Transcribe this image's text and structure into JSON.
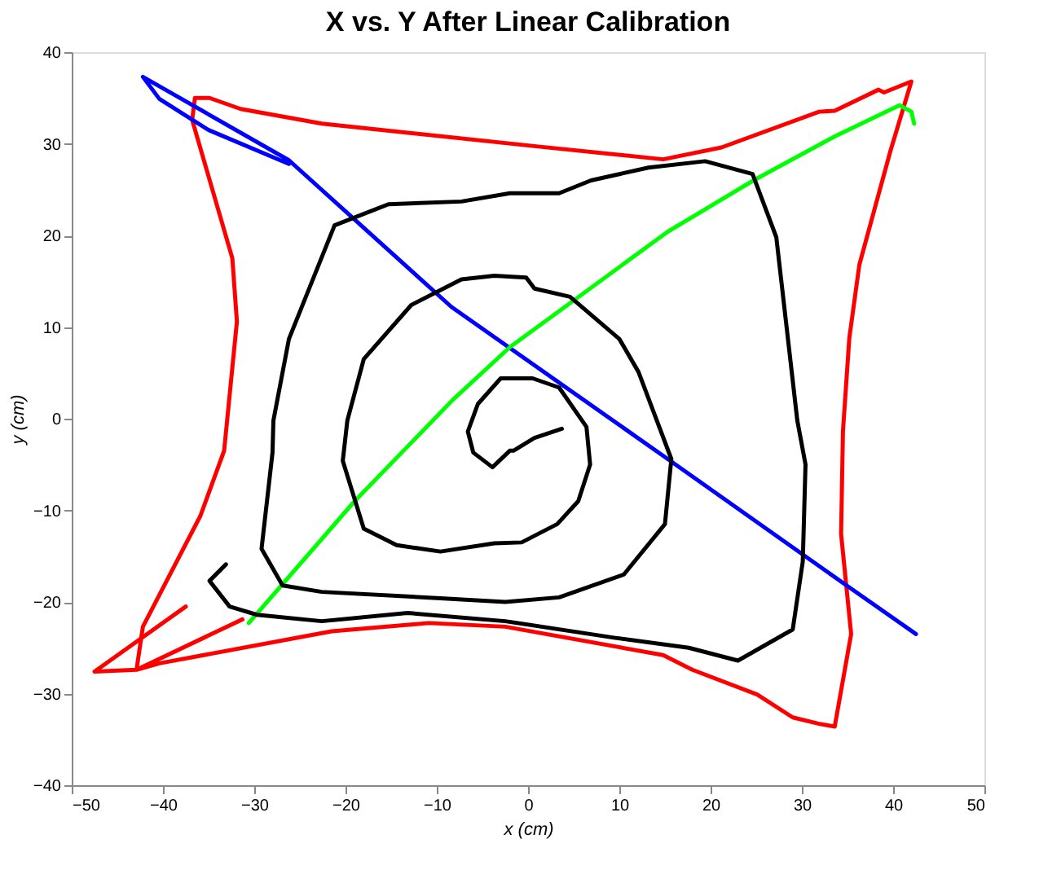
{
  "chart_data": {
    "type": "line",
    "title": "X vs. Y After Linear Calibration",
    "xlabel": "x (cm)",
    "ylabel": "y (cm)",
    "xlim": [
      -50,
      50
    ],
    "ylim": [
      -40,
      40
    ],
    "xticks": [
      -50,
      -40,
      -30,
      -20,
      -10,
      0,
      10,
      20,
      30,
      40,
      50
    ],
    "yticks": [
      -40,
      -30,
      -20,
      -10,
      0,
      10,
      20,
      30,
      40
    ],
    "grid": false,
    "marker": "none",
    "line_style": "solid",
    "series": [
      {
        "color": "#ff0000",
        "x": [
          -37.5,
          -47.5,
          -42.9,
          -42.2,
          -35.9,
          -33.3,
          -31.9,
          -32.4,
          -36.8,
          -36.5,
          -34.9,
          -31.5,
          -22.6,
          1.1,
          14.8,
          21.2,
          31.9,
          33.6,
          38.4,
          39.0,
          42.0,
          39.7,
          36.3,
          35.2,
          34.5,
          34.3,
          35.4,
          33.6,
          31.9,
          29.0,
          25.1,
          18.0,
          14.8,
          -2.5,
          -10.9,
          -21.5,
          -40.4,
          -42.9,
          -31.3
        ],
        "values": [
          -20.5,
          -27.6,
          -27.4,
          -22.7,
          -10.6,
          -3.5,
          10.6,
          17.5,
          32.6,
          35.0,
          35.0,
          33.8,
          32.2,
          29.7,
          28.3,
          29.6,
          33.5,
          33.6,
          35.9,
          35.6,
          36.8,
          29.2,
          16.8,
          8.8,
          -1.4,
          -12.6,
          -23.5,
          -33.6,
          -33.3,
          -32.6,
          -30.1,
          -27.4,
          -25.8,
          -22.7,
          -22.3,
          -23.2,
          -26.7,
          -27.4,
          -21.9
        ]
      },
      {
        "color": "#0000ff",
        "x": [
          -26.2,
          -35.0,
          -40.4,
          -42.2,
          -26.2,
          -8.4,
          15.3,
          34.9,
          42.5
        ],
        "values": [
          27.8,
          31.5,
          34.9,
          37.3,
          28.2,
          12.2,
          -4.4,
          -18.2,
          -23.5
        ]
      },
      {
        "color": "#00ff00",
        "x": [
          -30.6,
          -19.0,
          -8.2,
          -2.0,
          15.3,
          24.7,
          33.6,
          40.7,
          42.0,
          42.3
        ],
        "values": [
          -22.3,
          -9.0,
          2.1,
          7.8,
          20.4,
          26.0,
          30.8,
          34.2,
          33.5,
          32.2
        ]
      },
      {
        "color": "#000000",
        "x": [
          3.7,
          0.7,
          -1.6,
          -2.0,
          -3.9,
          -6.0,
          -6.6,
          -5.5,
          -3.0,
          0.5,
          3.4,
          6.4,
          6.8,
          5.5,
          3.2,
          -0.7,
          -3.7,
          -9.6,
          -14.4,
          -18.0,
          -20.3,
          -19.8,
          -18.0,
          -12.8,
          -7.3,
          -3.7,
          -0.2,
          0.7,
          4.6,
          10.0,
          12.1,
          15.7,
          15.0,
          10.5,
          3.4,
          -2.5,
          -9.6,
          -22.6,
          -26.9,
          -29.2,
          -28.0,
          -27.9,
          -26.2,
          -21.2,
          -15.3,
          -7.3,
          -2.0,
          3.4,
          6.9,
          13.2,
          19.4,
          24.6,
          27.2,
          29.5,
          30.4,
          30.1,
          29.0,
          23.0,
          17.6,
          9.4,
          -2.5,
          -13.2,
          -22.6,
          -29.7,
          -32.7,
          -34.9,
          -33.1
        ],
        "values": [
          -1.1,
          -2.1,
          -3.5,
          -3.5,
          -5.3,
          -3.7,
          -1.4,
          1.6,
          4.4,
          4.4,
          3.4,
          -0.9,
          -5.0,
          -9.0,
          -11.5,
          -13.5,
          -13.6,
          -14.5,
          -13.8,
          -12.0,
          -4.6,
          -0.2,
          6.5,
          12.4,
          15.2,
          15.6,
          15.4,
          14.2,
          13.3,
          8.7,
          5.1,
          -4.4,
          -11.5,
          -17.0,
          -19.5,
          -20.0,
          -19.6,
          -18.9,
          -18.2,
          -14.2,
          -3.7,
          -0.2,
          8.7,
          21.1,
          23.4,
          23.7,
          24.6,
          24.6,
          26.0,
          27.4,
          28.1,
          26.7,
          19.8,
          -0.2,
          -5.0,
          -15.6,
          -23.0,
          -26.4,
          -25.0,
          -23.9,
          -22.1,
          -21.2,
          -22.1,
          -21.4,
          -20.5,
          -17.7,
          -15.9
        ]
      }
    ]
  }
}
